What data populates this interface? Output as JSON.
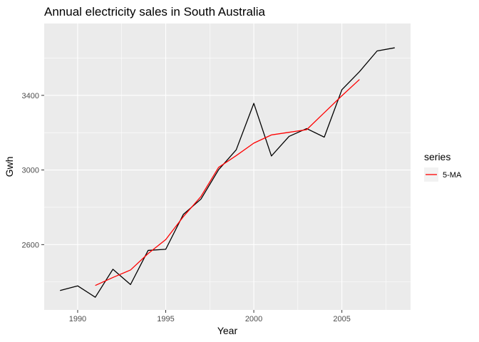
{
  "chart_data": {
    "type": "line",
    "title": "Annual electricity sales in South Australia",
    "xlabel": "Year",
    "ylabel": "Gwh",
    "xlim": [
      1988.1,
      2008.9
    ],
    "ylim": [
      2250,
      3785
    ],
    "x_ticks": [
      1990,
      1995,
      2000,
      2005
    ],
    "y_ticks": [
      2600,
      3000,
      3400
    ],
    "grid": true,
    "legend": {
      "title": "series",
      "placement": "right"
    },
    "series": [
      {
        "key": "actual",
        "color": "#000000",
        "points": [
          [
            1989,
            2354
          ],
          [
            1990,
            2379
          ],
          [
            1991,
            2318
          ],
          [
            1992,
            2468
          ],
          [
            1993,
            2386
          ],
          [
            1994,
            2569
          ],
          [
            1995,
            2575
          ],
          [
            1996,
            2762
          ],
          [
            1997,
            2844
          ],
          [
            1998,
            3001
          ],
          [
            1999,
            3108
          ],
          [
            2000,
            3357
          ],
          [
            2001,
            3075
          ],
          [
            2002,
            3180
          ],
          [
            2003,
            3222
          ],
          [
            2004,
            3176
          ],
          [
            2005,
            3430
          ],
          [
            2006,
            3527
          ],
          [
            2007,
            3638
          ],
          [
            2008,
            3655
          ]
        ]
      },
      {
        "key": "ma",
        "name": "5-MA",
        "color": "#ff0000",
        "points": [
          [
            1991,
            2381
          ],
          [
            1992,
            2424
          ],
          [
            1993,
            2464
          ],
          [
            1994,
            2552
          ],
          [
            1995,
            2627
          ],
          [
            1996,
            2750
          ],
          [
            1997,
            2858
          ],
          [
            1998,
            3014
          ],
          [
            1999,
            3077
          ],
          [
            2000,
            3144
          ],
          [
            2001,
            3188
          ],
          [
            2002,
            3202
          ],
          [
            2003,
            3216
          ],
          [
            2004,
            3307
          ],
          [
            2005,
            3398
          ],
          [
            2006,
            3485
          ]
        ]
      }
    ]
  }
}
